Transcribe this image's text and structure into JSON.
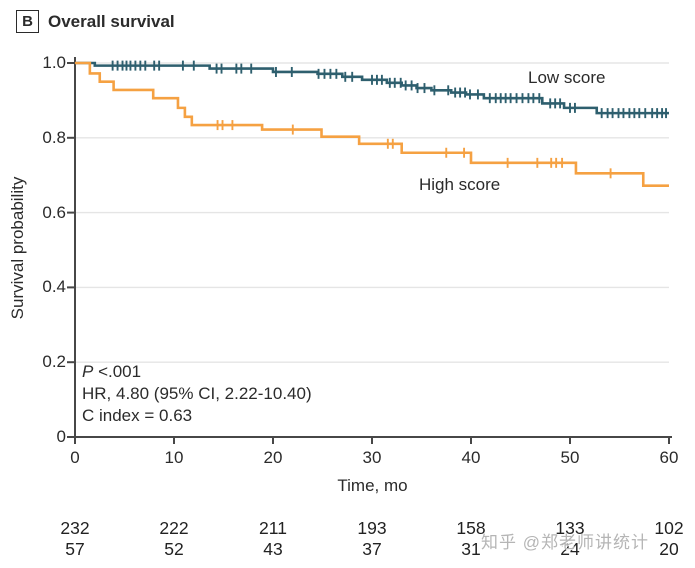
{
  "panel": {
    "tag": "B",
    "title": "Overall survival"
  },
  "axes": {
    "y_label": "Survival probability",
    "x_label": "Time, mo",
    "y_ticks": [
      {
        "label": "1.0",
        "value": 1.0
      },
      {
        "label": "0.8",
        "value": 0.8
      },
      {
        "label": "0.6",
        "value": 0.6
      },
      {
        "label": "0.4",
        "value": 0.4
      },
      {
        "label": "0.2",
        "value": 0.2
      },
      {
        "label": "0",
        "value": 0.0
      }
    ],
    "x_ticks": [
      {
        "label": "0",
        "value": 0
      },
      {
        "label": "10",
        "value": 10
      },
      {
        "label": "20",
        "value": 20
      },
      {
        "label": "30",
        "value": 30
      },
      {
        "label": "40",
        "value": 40
      },
      {
        "label": "50",
        "value": 50
      },
      {
        "label": "60",
        "value": 60
      }
    ]
  },
  "legend": {
    "low": "Low score",
    "high": "High score"
  },
  "stats": {
    "p_label": "P",
    "p_value": " <.001",
    "hr": "HR, 4.80 (95% CI, 2.22-10.40)",
    "c_index": "C index = 0.63"
  },
  "watermark": {
    "text": "知乎 @郑老师讲统计"
  },
  "colors": {
    "low": "#2e5f6e",
    "high": "#f5a142",
    "axis": "#474747",
    "grid": "#e5e5e5",
    "text": "#2b2b2b",
    "watermark": "#b5b5b5"
  },
  "chart_data": {
    "type": "line",
    "subtype": "kaplan-meier-step",
    "title": "Overall survival",
    "xlabel": "Time, mo",
    "ylabel": "Survival probability",
    "xlim": [
      0,
      60
    ],
    "ylim": [
      0,
      1.0
    ],
    "x_tick_values": [
      0,
      10,
      20,
      30,
      40,
      50,
      60
    ],
    "y_tick_values": [
      0,
      0.2,
      0.4,
      0.6,
      0.8,
      1.0
    ],
    "grid": "horizontal",
    "legend_position": "inline-labels",
    "annotations": [
      "P <.001",
      "HR, 4.80 (95% CI, 2.22-10.40)",
      "C index = 0.63"
    ],
    "series": [
      {
        "name": "Low score",
        "color": "#2e5f6e",
        "steps": [
          [
            0,
            1.0
          ],
          [
            2,
            0.993
          ],
          [
            13.6,
            0.985
          ],
          [
            20,
            0.976
          ],
          [
            24.5,
            0.971
          ],
          [
            27,
            0.963
          ],
          [
            29,
            0.955
          ],
          [
            31.5,
            0.947
          ],
          [
            33,
            0.94
          ],
          [
            34.5,
            0.933
          ],
          [
            36,
            0.927
          ],
          [
            38,
            0.921
          ],
          [
            39.5,
            0.916
          ],
          [
            41.3,
            0.906
          ],
          [
            47.2,
            0.892
          ],
          [
            49.4,
            0.88
          ],
          [
            52.7,
            0.866
          ]
        ],
        "censor_times": [
          3.8,
          4.3,
          4.8,
          5.2,
          5.6,
          6.1,
          6.6,
          7.1,
          8.0,
          8.5,
          10.9,
          12.0,
          14.3,
          14.8,
          16.3,
          16.8,
          17.8,
          20.3,
          21.9,
          24.6,
          25.2,
          25.8,
          26.4,
          27.3,
          28.0,
          30.0,
          30.5,
          31.0,
          31.8,
          32.3,
          32.9,
          33.4,
          34.0,
          34.6,
          35.3,
          36.3,
          37.7,
          38.4,
          38.9,
          39.4,
          39.9,
          40.7,
          41.9,
          42.5,
          43.0,
          43.5,
          44.0,
          44.6,
          45.2,
          45.8,
          46.3,
          46.9,
          48.0,
          48.5,
          49.0,
          50.0,
          50.5,
          53.2,
          53.8,
          54.3,
          54.9,
          55.4,
          56.0,
          56.5,
          57.0,
          57.6,
          58.3,
          58.8,
          59.3,
          59.7
        ]
      },
      {
        "name": "High score",
        "color": "#f5a142",
        "steps": [
          [
            0,
            1.0
          ],
          [
            1.5,
            0.972
          ],
          [
            2.5,
            0.95
          ],
          [
            3.9,
            0.928
          ],
          [
            7.9,
            0.906
          ],
          [
            10.4,
            0.88
          ],
          [
            11.1,
            0.856
          ],
          [
            11.8,
            0.834
          ],
          [
            18.9,
            0.822
          ],
          [
            24.9,
            0.803
          ],
          [
            28.7,
            0.784
          ],
          [
            33.0,
            0.76
          ],
          [
            40.0,
            0.733
          ],
          [
            50.6,
            0.705
          ],
          [
            57.4,
            0.672
          ]
        ],
        "censor_times": [
          14.4,
          14.9,
          15.9,
          22.0,
          31.6,
          32.1,
          37.5,
          39.3,
          43.7,
          46.7,
          48.1,
          48.6,
          49.2,
          54.1
        ]
      }
    ],
    "at_risk": {
      "times": [
        0,
        10,
        20,
        30,
        40,
        50,
        60
      ],
      "rows": [
        {
          "name": "Low score",
          "counts": [
            232,
            222,
            211,
            193,
            158,
            133,
            102
          ]
        },
        {
          "name": "High score",
          "counts": [
            57,
            52,
            43,
            37,
            31,
            24,
            20
          ]
        }
      ]
    }
  }
}
